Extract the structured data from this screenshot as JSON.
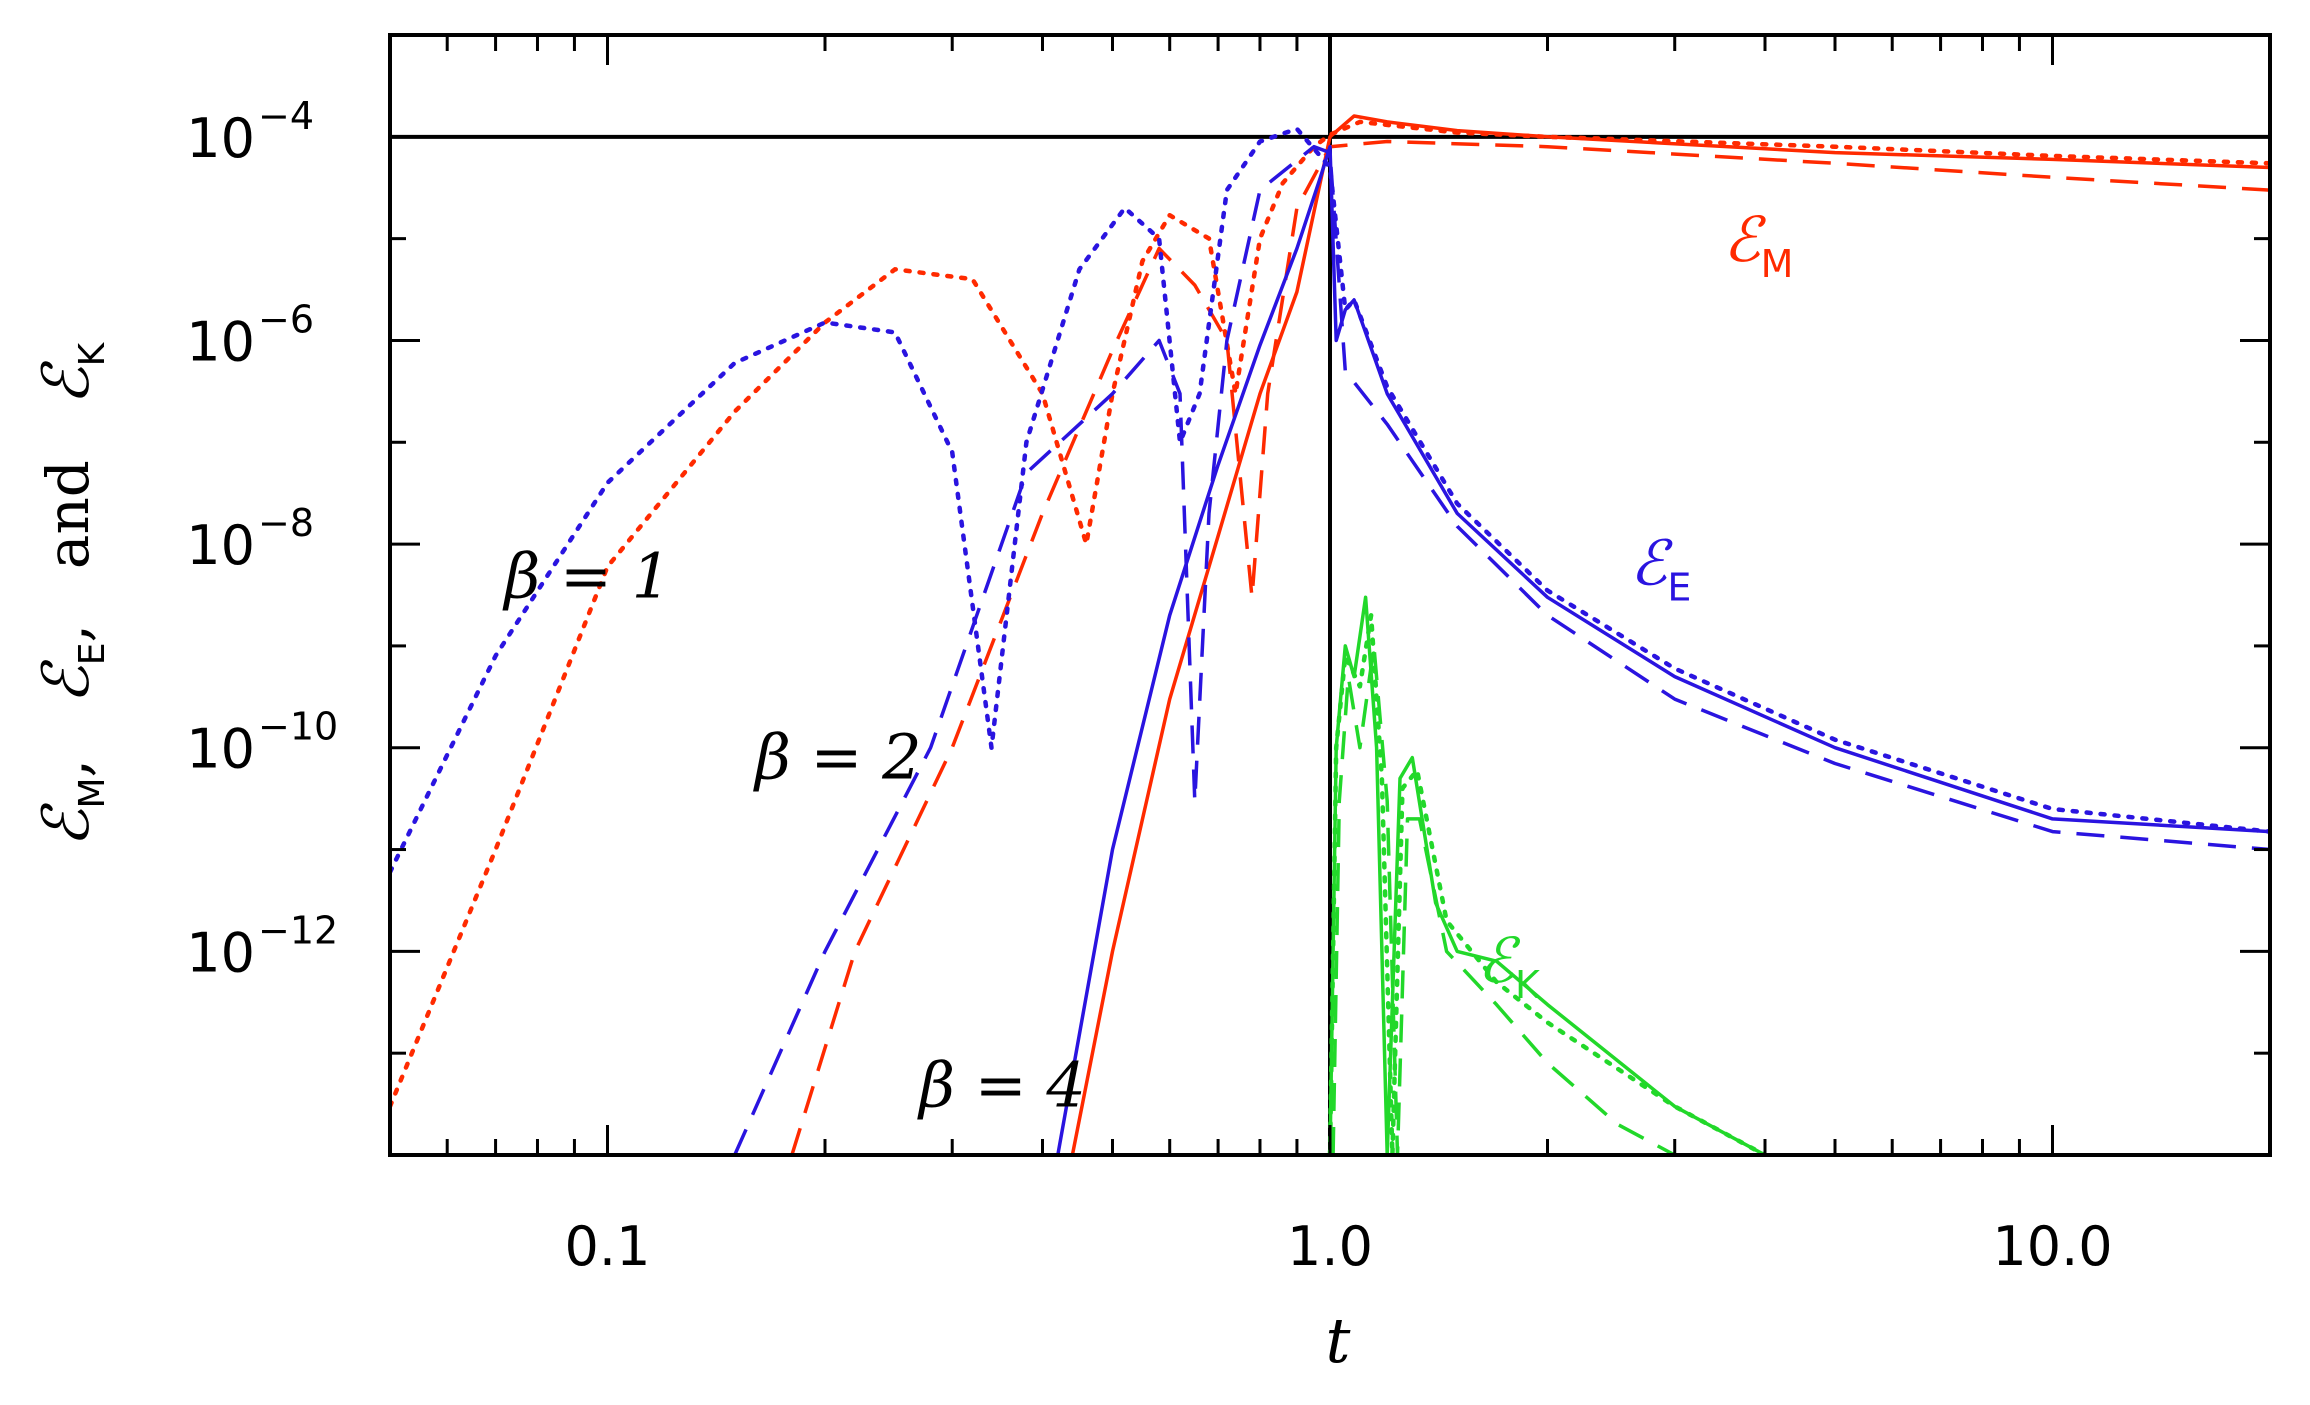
{
  "chart_data": {
    "type": "line",
    "title": "",
    "xlabel": "t",
    "ylabel": {
      "parts": [
        "ℰ",
        "M",
        ",",
        "ℰ",
        "E",
        ",",
        "and",
        "ℰ",
        "K"
      ]
    },
    "xscale": "log",
    "yscale": "log",
    "xlim": [
      0.05,
      20
    ],
    "ylim": [
      1e-14,
      0.001
    ],
    "x_ticks": [
      {
        "value": 0.1,
        "label": "0.1"
      },
      {
        "value": 1.0,
        "label": "1.0"
      },
      {
        "value": 10.0,
        "label": "10.0"
      }
    ],
    "y_ticks": [
      {
        "value": 0.0001,
        "base": "10",
        "exp": "−4"
      },
      {
        "value": 1e-06,
        "base": "10",
        "exp": "−6"
      },
      {
        "value": 1e-08,
        "base": "10",
        "exp": "−8"
      },
      {
        "value": 1e-10,
        "base": "10",
        "exp": "−10"
      },
      {
        "value": 1e-12,
        "base": "10",
        "exp": "−12"
      }
    ],
    "reference_lines": {
      "vertical_x": 1.0,
      "horizontal_y": 0.0001
    },
    "annotations": [
      {
        "text": "β = 1",
        "x": 0.072,
        "y": 3e-09
      },
      {
        "text": "β = 2",
        "x": 0.16,
        "y": 5e-11
      },
      {
        "text": "β = 4",
        "x": 0.27,
        "y": 3e-14
      }
    ],
    "curve_labels": [
      {
        "name": "M",
        "x": 3.5,
        "y": 6e-06,
        "color": "#ff2a00"
      },
      {
        "name": "E",
        "x": 2.6,
        "y": 4e-09,
        "color": "#2a14e0"
      },
      {
        "name": "K",
        "x": 1.6,
        "y": 5e-13,
        "color": "#22d82a"
      }
    ],
    "linestyle_legend": {
      "dotted": "β = 1",
      "dashed": "β = 2",
      "solid": "β = 4"
    },
    "series": [
      {
        "name": "ℰM β=4",
        "quantity": "M",
        "beta": 4,
        "style": "solid",
        "color": "#ff2a00",
        "points": [
          [
            0.44,
            1e-14
          ],
          [
            0.5,
            1e-12
          ],
          [
            0.6,
            3e-10
          ],
          [
            0.7,
            1.2e-08
          ],
          [
            0.8,
            3e-07
          ],
          [
            0.9,
            3e-06
          ],
          [
            1.0,
            0.0001
          ],
          [
            1.08,
            0.00016
          ],
          [
            1.2,
            0.00014
          ],
          [
            1.5,
            0.000115
          ],
          [
            2,
            0.0001
          ],
          [
            5,
            7e-05
          ],
          [
            10,
            6e-05
          ],
          [
            20,
            5e-05
          ]
        ]
      },
      {
        "name": "ℰM β=2",
        "quantity": "M",
        "beta": 2,
        "style": "dashed",
        "color": "#ff2a00",
        "points": [
          [
            0.18,
            1e-14
          ],
          [
            0.22,
            1e-12
          ],
          [
            0.3,
            1e-10
          ],
          [
            0.4,
            2e-08
          ],
          [
            0.5,
            8e-07
          ],
          [
            0.58,
            8e-06
          ],
          [
            0.65,
            3.5e-06
          ],
          [
            0.72,
            1e-06
          ],
          [
            0.78,
            3e-09
          ],
          [
            0.82,
            3e-07
          ],
          [
            0.9,
            2e-05
          ],
          [
            1.0,
            8e-05
          ],
          [
            1.2,
            9e-05
          ],
          [
            2,
            8e-05
          ],
          [
            5,
            5.5e-05
          ],
          [
            10,
            4e-05
          ],
          [
            20,
            3e-05
          ]
        ]
      },
      {
        "name": "ℰM β=1",
        "quantity": "M",
        "beta": 1,
        "style": "dotted",
        "color": "#ff2a00",
        "points": [
          [
            0.05,
            3e-14
          ],
          [
            0.07,
            1e-11
          ],
          [
            0.1,
            6e-09
          ],
          [
            0.15,
            2e-07
          ],
          [
            0.2,
            1.5e-06
          ],
          [
            0.25,
            5e-06
          ],
          [
            0.32,
            4e-06
          ],
          [
            0.4,
            3e-07
          ],
          [
            0.46,
            1e-08
          ],
          [
            0.5,
            3e-07
          ],
          [
            0.55,
            6e-06
          ],
          [
            0.6,
            1.7e-05
          ],
          [
            0.68,
            1e-05
          ],
          [
            0.74,
            3e-07
          ],
          [
            0.8,
            1e-05
          ],
          [
            0.86,
            3.5e-05
          ],
          [
            0.95,
            8e-05
          ],
          [
            1.0,
            0.000105
          ],
          [
            1.1,
            0.00014
          ],
          [
            1.5,
            0.00011
          ],
          [
            2,
            0.0001
          ],
          [
            5,
            8e-05
          ],
          [
            10,
            6.5e-05
          ],
          [
            20,
            5.5e-05
          ]
        ]
      },
      {
        "name": "ℰE β=4",
        "quantity": "E",
        "beta": 4,
        "style": "solid",
        "color": "#2a14e0",
        "points": [
          [
            0.42,
            1e-14
          ],
          [
            0.5,
            1e-11
          ],
          [
            0.6,
            2e-09
          ],
          [
            0.7,
            6e-08
          ],
          [
            0.8,
            9e-07
          ],
          [
            0.9,
            8e-06
          ],
          [
            0.97,
            4e-05
          ],
          [
            1.0,
            8e-05
          ],
          [
            1.02,
            1e-06
          ],
          [
            1.05,
            2e-06
          ],
          [
            1.08,
            2.5e-06
          ],
          [
            1.2,
            3e-07
          ],
          [
            1.5,
            2e-08
          ],
          [
            2,
            3e-09
          ],
          [
            3,
            5e-10
          ],
          [
            5,
            1e-10
          ],
          [
            10,
            2e-11
          ],
          [
            20,
            1.5e-11
          ]
        ]
      },
      {
        "name": "ℰE β=2",
        "quantity": "E",
        "beta": 2,
        "style": "dashed",
        "color": "#2a14e0",
        "points": [
          [
            0.15,
            1e-14
          ],
          [
            0.2,
            1e-12
          ],
          [
            0.28,
            1e-10
          ],
          [
            0.38,
            5e-08
          ],
          [
            0.5,
            3e-07
          ],
          [
            0.58,
            1e-06
          ],
          [
            0.62,
            3e-07
          ],
          [
            0.65,
            3e-11
          ],
          [
            0.68,
            2e-08
          ],
          [
            0.72,
            1e-06
          ],
          [
            0.8,
            3e-05
          ],
          [
            0.95,
            8e-05
          ],
          [
            1.0,
            7e-05
          ],
          [
            1.05,
            5e-07
          ],
          [
            1.2,
            1.5e-07
          ],
          [
            1.5,
            1.5e-08
          ],
          [
            2,
            2e-09
          ],
          [
            3,
            3e-10
          ],
          [
            5,
            7e-11
          ],
          [
            10,
            1.5e-11
          ],
          [
            20,
            1e-11
          ]
        ]
      },
      {
        "name": "ℰE β=1",
        "quantity": "E",
        "beta": 1,
        "style": "dotted",
        "color": "#2a14e0",
        "points": [
          [
            0.05,
            6e-12
          ],
          [
            0.07,
            8e-10
          ],
          [
            0.1,
            4e-08
          ],
          [
            0.15,
            6e-07
          ],
          [
            0.2,
            1.5e-06
          ],
          [
            0.25,
            1.2e-06
          ],
          [
            0.3,
            8e-08
          ],
          [
            0.34,
            1e-10
          ],
          [
            0.38,
            1e-07
          ],
          [
            0.45,
            5e-06
          ],
          [
            0.52,
            2e-05
          ],
          [
            0.58,
            1e-05
          ],
          [
            0.62,
            1e-07
          ],
          [
            0.66,
            3e-07
          ],
          [
            0.72,
            3e-05
          ],
          [
            0.8,
            9e-05
          ],
          [
            0.9,
            0.00012
          ],
          [
            1.0,
            5e-05
          ],
          [
            1.05,
            2e-06
          ],
          [
            1.08,
            2.5e-06
          ],
          [
            1.2,
            3.5e-07
          ],
          [
            1.5,
            2.5e-08
          ],
          [
            2,
            3.5e-09
          ],
          [
            3,
            6e-10
          ],
          [
            5,
            1.2e-10
          ],
          [
            10,
            2.5e-11
          ],
          [
            20,
            1.5e-11
          ]
        ]
      },
      {
        "name": "ℰK β=4",
        "quantity": "K",
        "beta": 4,
        "style": "solid",
        "color": "#22d82a",
        "points": [
          [
            1.0,
            1e-14
          ],
          [
            1.02,
            1e-10
          ],
          [
            1.05,
            1e-09
          ],
          [
            1.08,
            5e-10
          ],
          [
            1.12,
            3e-09
          ],
          [
            1.16,
            1e-10
          ],
          [
            1.2,
            1e-14
          ],
          [
            1.25,
            5e-11
          ],
          [
            1.3,
            8e-11
          ],
          [
            1.4,
            3e-12
          ],
          [
            1.5,
            1e-12
          ],
          [
            1.7,
            8e-13
          ],
          [
            2,
            3e-13
          ],
          [
            3,
            3e-14
          ],
          [
            4,
            1e-14
          ]
        ]
      },
      {
        "name": "ℰK β=2",
        "quantity": "K",
        "beta": 2,
        "style": "dashed",
        "color": "#22d82a",
        "points": [
          [
            1.01,
            1e-14
          ],
          [
            1.03,
            3e-11
          ],
          [
            1.06,
            5e-10
          ],
          [
            1.1,
            1e-10
          ],
          [
            1.15,
            1e-09
          ],
          [
            1.2,
            3e-11
          ],
          [
            1.24,
            1e-14
          ],
          [
            1.28,
            2e-11
          ],
          [
            1.33,
            2e-11
          ],
          [
            1.45,
            1e-12
          ],
          [
            1.7,
            3e-13
          ],
          [
            2,
            8e-14
          ],
          [
            2.5,
            2e-14
          ],
          [
            3,
            1e-14
          ]
        ]
      },
      {
        "name": "ℰK β=1",
        "quantity": "K",
        "beta": 1,
        "style": "dotted",
        "color": "#22d82a",
        "points": [
          [
            1.0,
            1e-14
          ],
          [
            1.02,
            1e-10
          ],
          [
            1.05,
            8e-10
          ],
          [
            1.1,
            4e-10
          ],
          [
            1.14,
            2e-09
          ],
          [
            1.18,
            5e-11
          ],
          [
            1.22,
            1e-14
          ],
          [
            1.26,
            4e-11
          ],
          [
            1.32,
            6e-11
          ],
          [
            1.45,
            2e-12
          ],
          [
            1.7,
            5e-13
          ],
          [
            2,
            2e-13
          ],
          [
            3,
            3e-14
          ],
          [
            4,
            1e-14
          ]
        ]
      }
    ]
  }
}
